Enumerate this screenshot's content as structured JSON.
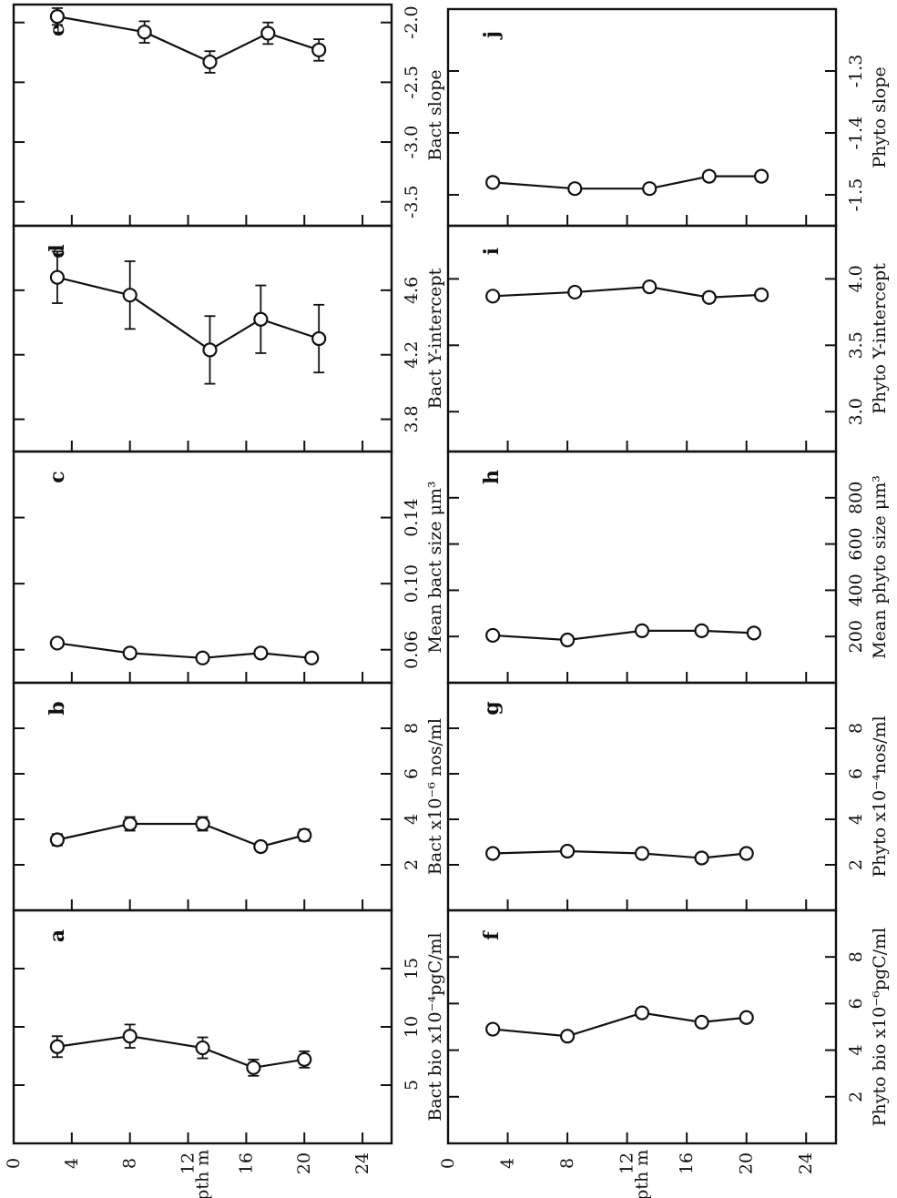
{
  "colors": {
    "ink": "#111111",
    "paper": "#ffffff"
  },
  "chart_data": [
    {
      "type": "line",
      "panel": "a",
      "group": "left",
      "xlabel": "Bact bio x10⁻⁴pgC/ml",
      "ylabel": "Depth m",
      "xlim": [
        0,
        20
      ],
      "ylim": [
        0,
        26
      ],
      "x_ticks": [
        5,
        10,
        15
      ],
      "x_tick_labels": [
        "5",
        "10",
        "15"
      ],
      "y_ticks": [
        0,
        4,
        8,
        12,
        16,
        20,
        24
      ],
      "y_tick_labels": [
        "0",
        "4",
        "8",
        "12",
        "16",
        "20",
        "24"
      ],
      "series": [
        {
          "x": [
            8.3,
            9.2,
            8.2,
            6.5,
            7.2
          ],
          "y": [
            3,
            8,
            13,
            16.5,
            20
          ],
          "err": [
            0.9,
            1.0,
            0.9,
            0.7,
            0.7
          ]
        }
      ]
    },
    {
      "type": "line",
      "panel": "b",
      "group": "left",
      "xlabel": "Bact x10⁻⁶ nos/ml",
      "ylabel": "Depth m",
      "xlim": [
        0,
        10
      ],
      "ylim": [
        0,
        26
      ],
      "x_ticks": [
        2,
        4,
        6,
        8
      ],
      "x_tick_labels": [
        "2",
        "4",
        "6",
        "8"
      ],
      "y_ticks": [
        0,
        4,
        8,
        12,
        16,
        20,
        24
      ],
      "y_tick_labels": [],
      "series": [
        {
          "x": [
            3.1,
            3.8,
            3.8,
            2.8,
            3.3
          ],
          "y": [
            3,
            8,
            13,
            17,
            20
          ],
          "err": [
            0.25,
            0.3,
            0.3,
            0.0,
            0.25
          ]
        }
      ]
    },
    {
      "type": "line",
      "panel": "c",
      "group": "left",
      "xlabel": "Mean bact size μm³",
      "ylabel": "Depth m",
      "xlim": [
        0.04,
        0.18
      ],
      "ylim": [
        0,
        26
      ],
      "x_ticks": [
        0.06,
        0.1,
        0.14
      ],
      "x_tick_labels": [
        "0.06",
        "0.10",
        "0.14"
      ],
      "y_ticks": [
        0,
        4,
        8,
        12,
        16,
        20,
        24
      ],
      "y_tick_labels": [],
      "series": [
        {
          "x": [
            0.064,
            0.058,
            0.055,
            0.058,
            0.055
          ],
          "y": [
            3,
            8,
            13,
            17,
            20.5
          ],
          "err": [
            0,
            0,
            0,
            0,
            0
          ]
        }
      ]
    },
    {
      "type": "line",
      "panel": "d",
      "group": "left",
      "xlabel": "Bact Y-intercept",
      "ylabel": "Depth m",
      "xlim": [
        3.6,
        5.0
      ],
      "ylim": [
        0,
        26
      ],
      "x_ticks": [
        3.8,
        4.2,
        4.6
      ],
      "x_tick_labels": [
        "3.8",
        "4.2",
        "4.6"
      ],
      "y_ticks": [
        0,
        4,
        8,
        12,
        16,
        20,
        24
      ],
      "y_tick_labels": [],
      "series": [
        {
          "x": [
            4.68,
            4.57,
            4.23,
            4.42,
            4.3
          ],
          "y": [
            3,
            8,
            13.5,
            17,
            21
          ],
          "err": [
            0.16,
            0.21,
            0.21,
            0.21,
            0.21
          ]
        }
      ]
    },
    {
      "type": "line",
      "panel": "e",
      "group": "left",
      "xlabel": "Bact slope",
      "ylabel": "Depth m",
      "xlim": [
        -3.7,
        -1.85
      ],
      "ylim": [
        0,
        26
      ],
      "x_ticks": [
        -3.5,
        -3.0,
        -2.5,
        -2.0
      ],
      "x_tick_labels": [
        "-3.5",
        "-3.0",
        "-2.5",
        "-2.0"
      ],
      "y_ticks": [
        0,
        4,
        8,
        12,
        16,
        20,
        24
      ],
      "y_tick_labels": [],
      "series": [
        {
          "x": [
            -1.95,
            -2.08,
            -2.33,
            -2.09,
            -2.23
          ],
          "y": [
            3,
            9,
            13.5,
            17.5,
            21
          ],
          "err": [
            0.07,
            0.09,
            0.09,
            0.09,
            0.09
          ]
        }
      ]
    },
    {
      "type": "line",
      "panel": "f",
      "group": "right",
      "xlabel": "Phyto bio x10⁻⁶pgC/ml",
      "ylabel": "Depth m",
      "xlim": [
        0,
        10
      ],
      "ylim": [
        0,
        26
      ],
      "x_ticks": [
        2,
        4,
        6,
        8
      ],
      "x_tick_labels": [
        "2",
        "4",
        "6",
        "8"
      ],
      "y_ticks": [
        0,
        4,
        8,
        12,
        16,
        20,
        24
      ],
      "y_tick_labels": [
        "0",
        "4",
        "8",
        "12",
        "16",
        "20",
        "24"
      ],
      "series": [
        {
          "x": [
            4.9,
            4.6,
            5.6,
            5.2,
            5.4
          ],
          "y": [
            3,
            8,
            13,
            17,
            20
          ],
          "err": [
            0,
            0,
            0,
            0,
            0
          ]
        }
      ]
    },
    {
      "type": "line",
      "panel": "g",
      "group": "right",
      "xlabel": "Phyto x10⁻⁴nos/ml",
      "ylabel": "Depth m",
      "xlim": [
        0,
        10
      ],
      "ylim": [
        0,
        26
      ],
      "x_ticks": [
        2,
        4,
        6,
        8
      ],
      "x_tick_labels": [
        "2",
        "4",
        "6",
        "8"
      ],
      "y_ticks": [
        0,
        4,
        8,
        12,
        16,
        20,
        24
      ],
      "y_tick_labels": [],
      "series": [
        {
          "x": [
            2.5,
            2.6,
            2.5,
            2.3,
            2.5
          ],
          "y": [
            3,
            8,
            13,
            17,
            20
          ],
          "err": [
            0,
            0,
            0,
            0,
            0
          ]
        }
      ]
    },
    {
      "type": "line",
      "panel": "h",
      "group": "right",
      "xlabel": "Mean phyto size μm³",
      "ylabel": "Depth m",
      "xlim": [
        0,
        1000
      ],
      "ylim": [
        0,
        26
      ],
      "x_ticks": [
        200,
        400,
        600,
        800
      ],
      "x_tick_labels": [
        "200",
        "400",
        "600",
        "800"
      ],
      "y_ticks": [
        0,
        4,
        8,
        12,
        16,
        20,
        24
      ],
      "y_tick_labels": [],
      "series": [
        {
          "x": [
            205,
            185,
            225,
            225,
            215
          ],
          "y": [
            3,
            8,
            13,
            17,
            20.5
          ],
          "err": [
            0,
            0,
            0,
            0,
            0
          ]
        }
      ]
    },
    {
      "type": "line",
      "panel": "i",
      "group": "right",
      "xlabel": "Phyto Y-intercept",
      "ylabel": "Depth m",
      "xlim": [
        2.7,
        4.4
      ],
      "ylim": [
        0,
        26
      ],
      "x_ticks": [
        3.0,
        3.5,
        4.0
      ],
      "x_tick_labels": [
        "3.0",
        "3.5",
        "4.0"
      ],
      "y_ticks": [
        0,
        4,
        8,
        12,
        16,
        20,
        24
      ],
      "y_tick_labels": [],
      "series": [
        {
          "x": [
            3.87,
            3.9,
            3.94,
            3.86,
            3.88
          ],
          "y": [
            3,
            8.5,
            13.5,
            17.5,
            21
          ],
          "err": [
            0,
            0,
            0,
            0,
            0
          ]
        }
      ]
    },
    {
      "type": "line",
      "panel": "j",
      "group": "right",
      "xlabel": "Phyto slope",
      "ylabel": "Depth m",
      "xlim": [
        -1.55,
        -1.2
      ],
      "ylim": [
        0,
        26
      ],
      "x_ticks": [
        -1.5,
        -1.4,
        -1.3
      ],
      "x_tick_labels": [
        "-1.5",
        "-1.4",
        "-1.3"
      ],
      "y_ticks": [
        0,
        4,
        8,
        12,
        16,
        20,
        24
      ],
      "y_tick_labels": [],
      "series": [
        {
          "x": [
            -1.48,
            -1.49,
            -1.49,
            -1.47,
            -1.47
          ],
          "y": [
            3,
            8.5,
            13.5,
            17.5,
            21
          ],
          "err": [
            0.007,
            0.007,
            0.007,
            0.007,
            0.007
          ]
        }
      ]
    }
  ]
}
